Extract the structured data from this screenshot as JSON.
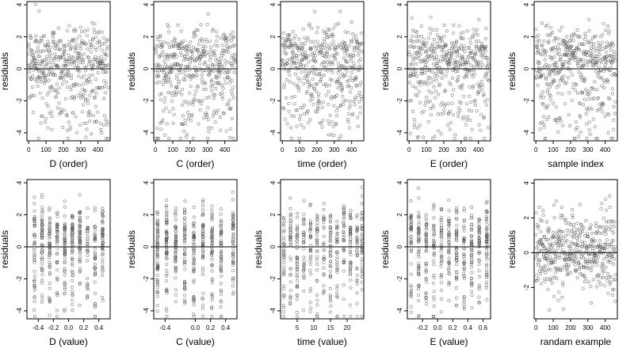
{
  "chart_data": [
    {
      "type": "scatter",
      "xlabel": "D (order)",
      "ylabel": "residuals",
      "xlim": [
        -10,
        470
      ],
      "ylim": [
        -4.5,
        4.2
      ],
      "xticks": [
        0,
        100,
        200,
        300,
        400
      ],
      "yticks": [
        -4,
        -2,
        0,
        2,
        4
      ],
      "yticklabels": [
        "-4",
        "-2",
        "0",
        "2",
        "4"
      ],
      "hline": 0,
      "xticklabels": [
        "0",
        "100",
        "200",
        "300",
        "400"
      ],
      "pattern": "order",
      "n": 460,
      "seed": 11
    },
    {
      "type": "scatter",
      "xlabel": "C (order)",
      "ylabel": "residuals",
      "xlim": [
        -10,
        470
      ],
      "ylim": [
        -4.5,
        4.2
      ],
      "xticks": [
        0,
        100,
        200,
        300,
        400
      ],
      "yticks": [
        -4,
        -2,
        0,
        2,
        4
      ],
      "yticklabels": [
        "-4",
        "-2",
        "0",
        "2",
        "4"
      ],
      "hline": 0,
      "xticklabels": [
        "0",
        "100",
        "200",
        "300",
        "400"
      ],
      "pattern": "order",
      "n": 460,
      "seed": 23
    },
    {
      "type": "scatter",
      "xlabel": "time (order)",
      "ylabel": "residuals",
      "xlim": [
        -10,
        470
      ],
      "ylim": [
        -4.5,
        4.2
      ],
      "xticks": [
        0,
        100,
        200,
        300,
        400
      ],
      "yticks": [
        -4,
        -2,
        0,
        2,
        4
      ],
      "yticklabels": [
        "-4",
        "-2",
        "0",
        "2",
        "4"
      ],
      "hline": 0,
      "xticklabels": [
        "0",
        "100",
        "200",
        "300",
        "400"
      ],
      "pattern": "order",
      "n": 460,
      "seed": 37
    },
    {
      "type": "scatter",
      "xlabel": "E (order)",
      "ylabel": "residuals",
      "xlim": [
        -10,
        470
      ],
      "ylim": [
        -4.5,
        4.2
      ],
      "xticks": [
        0,
        100,
        200,
        300,
        400
      ],
      "yticks": [
        -4,
        -2,
        0,
        2,
        4
      ],
      "yticklabels": [
        "-4",
        "-2",
        "0",
        "2",
        "4"
      ],
      "hline": 0,
      "xticklabels": [
        "0",
        "100",
        "200",
        "300",
        "400"
      ],
      "pattern": "order",
      "n": 460,
      "seed": 41
    },
    {
      "type": "scatter",
      "xlabel": "sample index",
      "ylabel": "residuals",
      "xlim": [
        -10,
        470
      ],
      "ylim": [
        -4.5,
        4.2
      ],
      "xticks": [
        0,
        100,
        200,
        300,
        400
      ],
      "yticks": [
        -4,
        -2,
        0,
        2,
        4
      ],
      "yticklabels": [
        "-4",
        "-2",
        "0",
        "2",
        "4"
      ],
      "hline": 0,
      "xticklabels": [
        "0",
        "100",
        "200",
        "300",
        "400"
      ],
      "pattern": "order",
      "n": 460,
      "seed": 53
    },
    {
      "type": "scatter",
      "xlabel": "D (value)",
      "ylabel": "residuals",
      "xlim": [
        -0.55,
        0.55
      ],
      "ylim": [
        -4.5,
        4.2
      ],
      "xticks": [
        -0.4,
        -0.2,
        0.0,
        0.2,
        0.4
      ],
      "yticks": [
        -4,
        -2,
        0,
        2,
        4
      ],
      "yticklabels": [
        "-4",
        "-2",
        "0",
        "2",
        "4"
      ],
      "hline": 0,
      "xticklabels": [
        "-0.4",
        "-0.2",
        "0.0",
        "0.2",
        "0.4"
      ],
      "pattern": "clustered",
      "centers": [
        -0.45,
        -0.35,
        -0.25,
        -0.15,
        -0.05,
        0.05,
        0.15,
        0.25,
        0.35,
        0.45
      ],
      "n": 460,
      "seed": 61
    },
    {
      "type": "scatter",
      "xlabel": "C (value)",
      "ylabel": "residuals",
      "xlim": [
        -0.55,
        0.55
      ],
      "ylim": [
        -4.5,
        4.2
      ],
      "xticks": [
        -0.4,
        0.0,
        0.2,
        0.4
      ],
      "yticks": [
        -4,
        -2,
        0,
        2,
        4
      ],
      "yticklabels": [
        "-4",
        "-2",
        "0",
        "2",
        "4"
      ],
      "hline": 0,
      "xticklabels": [
        "-0.4",
        "0.0",
        "0.2",
        "0.4"
      ],
      "pattern": "clustered",
      "centers": [
        -0.5,
        -0.38,
        -0.26,
        -0.14,
        -0.02,
        0.1,
        0.22,
        0.34,
        0.5
      ],
      "n": 460,
      "seed": 71
    },
    {
      "type": "scatter",
      "xlabel": "time (value)",
      "ylabel": "residuals",
      "xlim": [
        0,
        25
      ],
      "ylim": [
        -4.5,
        4.2
      ],
      "xticks": [
        5,
        10,
        15,
        20
      ],
      "yticks": [
        -4,
        -2,
        0,
        2,
        4
      ],
      "yticklabels": [
        "-4",
        "-2",
        "0",
        "2",
        "4"
      ],
      "hline": 0,
      "xticklabels": [
        "5",
        "10",
        "15",
        "20"
      ],
      "pattern": "clustered",
      "centers": [
        1,
        3,
        5,
        7,
        9,
        11,
        13,
        15,
        17,
        19,
        21,
        23,
        24.5
      ],
      "n": 460,
      "seed": 83
    },
    {
      "type": "scatter",
      "xlabel": "E (value)",
      "ylabel": "residuals",
      "xlim": [
        -0.4,
        0.7
      ],
      "ylim": [
        -4.5,
        4.2
      ],
      "xticks": [
        -0.2,
        0.0,
        0.2,
        0.4,
        0.6
      ],
      "yticks": [
        -4,
        -2,
        0,
        2,
        4
      ],
      "yticklabels": [
        "-4",
        "-2",
        "0",
        "2",
        "4"
      ],
      "hline": 0,
      "xticklabels": [
        "-0.2",
        "0.0",
        "0.2",
        "0.4",
        "0.6"
      ],
      "pattern": "clustered",
      "centers": [
        -0.35,
        -0.25,
        -0.15,
        -0.05,
        0.05,
        0.15,
        0.25,
        0.35,
        0.45,
        0.55,
        0.65
      ],
      "n": 460,
      "seed": 97
    },
    {
      "type": "scatter",
      "xlabel": "randam example",
      "ylabel": "residuals",
      "xlim": [
        -10,
        470
      ],
      "ylim": [
        -3.8,
        4.2
      ],
      "xticks": [
        0,
        100,
        200,
        300,
        400
      ],
      "yticks": [
        -2,
        0,
        2,
        4
      ],
      "yticklabels": [
        "-2",
        "0",
        "2",
        "4"
      ],
      "hline": 0,
      "xticklabels": [
        "0",
        "100",
        "200",
        "300",
        "400"
      ],
      "pattern": "random",
      "n": 460,
      "seed": 109
    }
  ]
}
